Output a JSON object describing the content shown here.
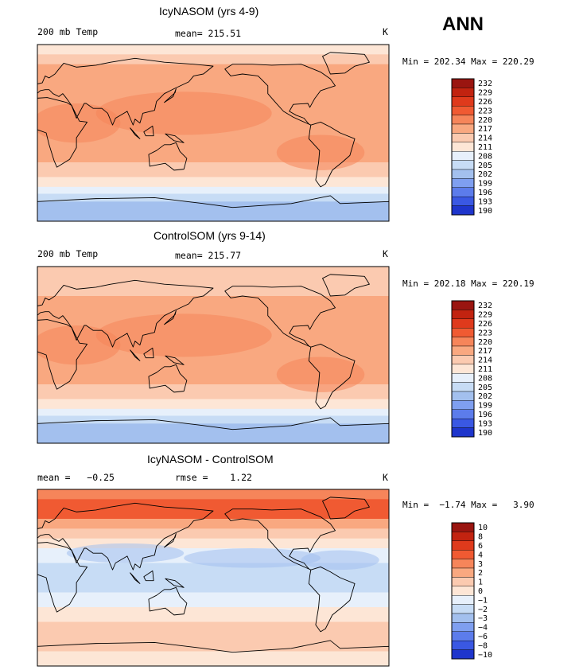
{
  "season": "ANN",
  "colors": {
    "pos": [
      "#9a1510",
      "#c22310",
      "#df3a1c",
      "#f05a32",
      "#f6855a",
      "#f9a880",
      "#fbcab0",
      "#fde6d6"
    ],
    "neg": [
      "#e7f0fb",
      "#c7dcf5",
      "#a3c0ee",
      "#7f9ff0",
      "#5c7ceb",
      "#3a58e3",
      "#1e35cc",
      "#0a16a0",
      "#020b86"
    ],
    "coast": "#000000"
  },
  "chart_data": [
    {
      "type": "heatmap",
      "title": "IcyNASOM (yrs 4-9)",
      "header_left": "200 mb Temp",
      "header_mid": "mean= 215.51",
      "header_right": "K",
      "min_max": "Min = 202.34 Max = 220.29",
      "colorbar_labels": [
        "232",
        "229",
        "226",
        "223",
        "220",
        "217",
        "214",
        "211",
        "208",
        "205",
        "202",
        "199",
        "196",
        "193",
        "190"
      ],
      "lat_profile": [
        {
          "lat": 90,
          "level": 7
        },
        {
          "lat": 80,
          "level": 8
        },
        {
          "lat": 70,
          "level": 9
        },
        {
          "lat": 60,
          "level": 9
        },
        {
          "lat": 45,
          "level": 9
        },
        {
          "lat": 30,
          "level": 9
        },
        {
          "lat": 15,
          "level": 9
        },
        {
          "lat": 0,
          "level": 9
        },
        {
          "lat": -15,
          "level": 9
        },
        {
          "lat": -30,
          "level": 8
        },
        {
          "lat": -45,
          "level": 7
        },
        {
          "lat": -55,
          "level": 6
        },
        {
          "lat": -62,
          "level": 5
        },
        {
          "lat": -70,
          "level": 4
        },
        {
          "lat": -90,
          "level": 4
        }
      ]
    },
    {
      "type": "heatmap",
      "title": "ControlSOM (yrs 9-14)",
      "header_left": "200 mb Temp",
      "header_mid": "mean= 215.77",
      "header_right": "K",
      "min_max": "Min = 202.18 Max = 220.19",
      "colorbar_labels": [
        "232",
        "229",
        "226",
        "223",
        "220",
        "217",
        "214",
        "211",
        "208",
        "205",
        "202",
        "199",
        "196",
        "193",
        "190"
      ],
      "lat_profile": [
        {
          "lat": 90,
          "level": 8
        },
        {
          "lat": 80,
          "level": 8
        },
        {
          "lat": 70,
          "level": 8
        },
        {
          "lat": 60,
          "level": 9
        },
        {
          "lat": 45,
          "level": 9
        },
        {
          "lat": 30,
          "level": 9
        },
        {
          "lat": 15,
          "level": 9
        },
        {
          "lat": 0,
          "level": 9
        },
        {
          "lat": -15,
          "level": 9
        },
        {
          "lat": -30,
          "level": 8
        },
        {
          "lat": -45,
          "level": 7
        },
        {
          "lat": -55,
          "level": 6
        },
        {
          "lat": -62,
          "level": 5
        },
        {
          "lat": -70,
          "level": 4
        },
        {
          "lat": -90,
          "level": 4
        }
      ]
    },
    {
      "type": "heatmap",
      "title": "IcyNASOM - ControlSOM",
      "header_left": "mean =   −0.25",
      "header_mid": "rmse =    1.22",
      "header_right": "K",
      "min_max": "Min =  −1.74 Max =   3.90",
      "colorbar_labels": [
        "10",
        "8",
        "6",
        "4",
        "3",
        "2",
        "1",
        "0",
        "−1",
        "−2",
        "−3",
        "−4",
        "−6",
        "−8",
        "−10"
      ],
      "lat_profile": [
        {
          "lat": 90,
          "level": 10
        },
        {
          "lat": 80,
          "level": 11
        },
        {
          "lat": 70,
          "level": 11
        },
        {
          "lat": 60,
          "level": 9
        },
        {
          "lat": 50,
          "level": 8
        },
        {
          "lat": 40,
          "level": 7
        },
        {
          "lat": 30,
          "level": 6
        },
        {
          "lat": 15,
          "level": 5
        },
        {
          "lat": 0,
          "level": 5
        },
        {
          "lat": -15,
          "level": 6
        },
        {
          "lat": -30,
          "level": 7
        },
        {
          "lat": -45,
          "level": 8
        },
        {
          "lat": -60,
          "level": 8
        },
        {
          "lat": -75,
          "level": 7
        },
        {
          "lat": -90,
          "level": 7
        }
      ]
    }
  ]
}
